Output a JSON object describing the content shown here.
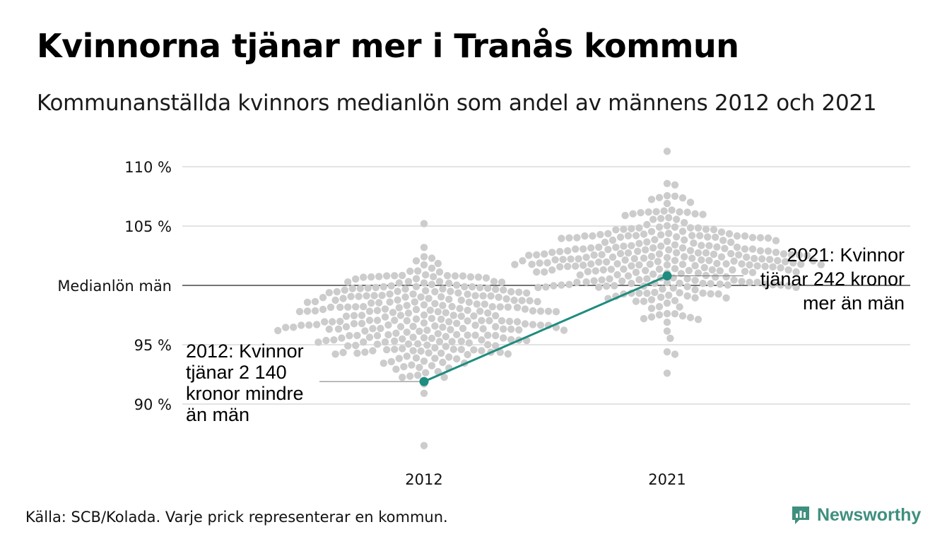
{
  "title": "Kvinnorna tjänar mer i Tranås kommun",
  "subtitle": "Kommunanställda kvinnors medianlön som andel av männens 2012 och 2021",
  "source": "Källa: SCB/Kolada. Varje prick representerar en kommun.",
  "brand": {
    "name": "Newsworthy",
    "icon": "newsworthy-logo-icon",
    "color": "#3f8f7e"
  },
  "chart_data": {
    "type": "scatter",
    "subtype": "beeswarm",
    "categories": [
      "2012",
      "2021"
    ],
    "y_tick_labels": [
      {
        "value": 110,
        "label": "110 %"
      },
      {
        "value": 105,
        "label": "105 %"
      },
      {
        "value": 100,
        "label": "Medianlön män"
      },
      {
        "value": 95,
        "label": "95 %"
      },
      {
        "value": 90,
        "label": "90 %"
      }
    ],
    "ylim": [
      86,
      111.5
    ],
    "grid": true,
    "reference_line": {
      "value": 100,
      "label": "Medianlön män"
    },
    "highlight": {
      "name": "Tranås",
      "color": "#1e8c7e",
      "values": [
        {
          "x": "2012",
          "y": 91.9
        },
        {
          "x": "2021",
          "y": 100.8
        }
      ]
    },
    "annotations": [
      {
        "category": "2012",
        "lines": [
          "2012: Kvinnor",
          "tjänar 2 140",
          "kronor mindre",
          "än män"
        ]
      },
      {
        "category": "2021",
        "lines": [
          "2021: Kvinnor",
          "tjänar 242 kronor",
          "mer än män"
        ]
      }
    ],
    "distributions": [
      {
        "category": "2012",
        "count": 290,
        "min": 86.5,
        "max": 105.2,
        "median": 97.2,
        "spread": 2.4
      },
      {
        "category": "2021",
        "count": 290,
        "min": 92.6,
        "max": 111.3,
        "median": 102.2,
        "spread": 2.3
      }
    ],
    "dot_color": "#cccccc"
  }
}
